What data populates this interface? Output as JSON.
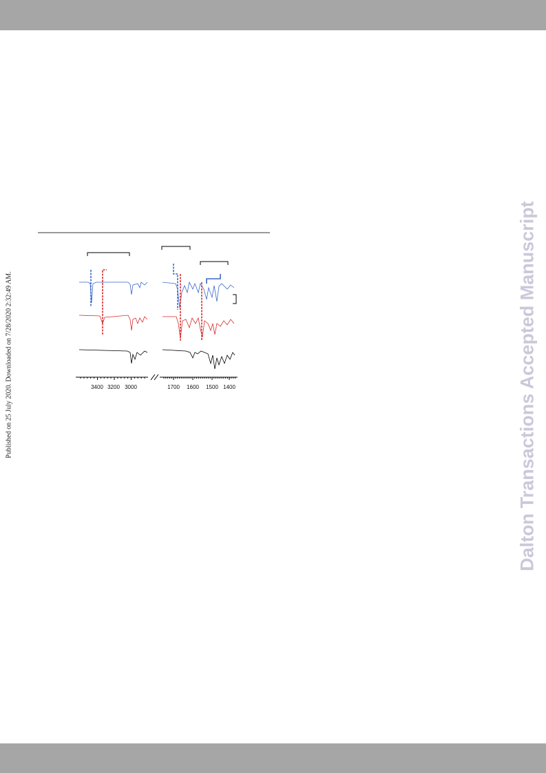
{
  "sidebar": {
    "published": "Published on 25 July 2020. Downloaded on 7/28/2020 2:32:49 AM."
  },
  "watermark": "Dalton Transactions Accepted Manuscript",
  "figure": {
    "x_ticks_left": [
      3400,
      3200,
      3000
    ],
    "x_ticks_right": [
      1700,
      1600,
      1500,
      1400
    ]
  }
}
